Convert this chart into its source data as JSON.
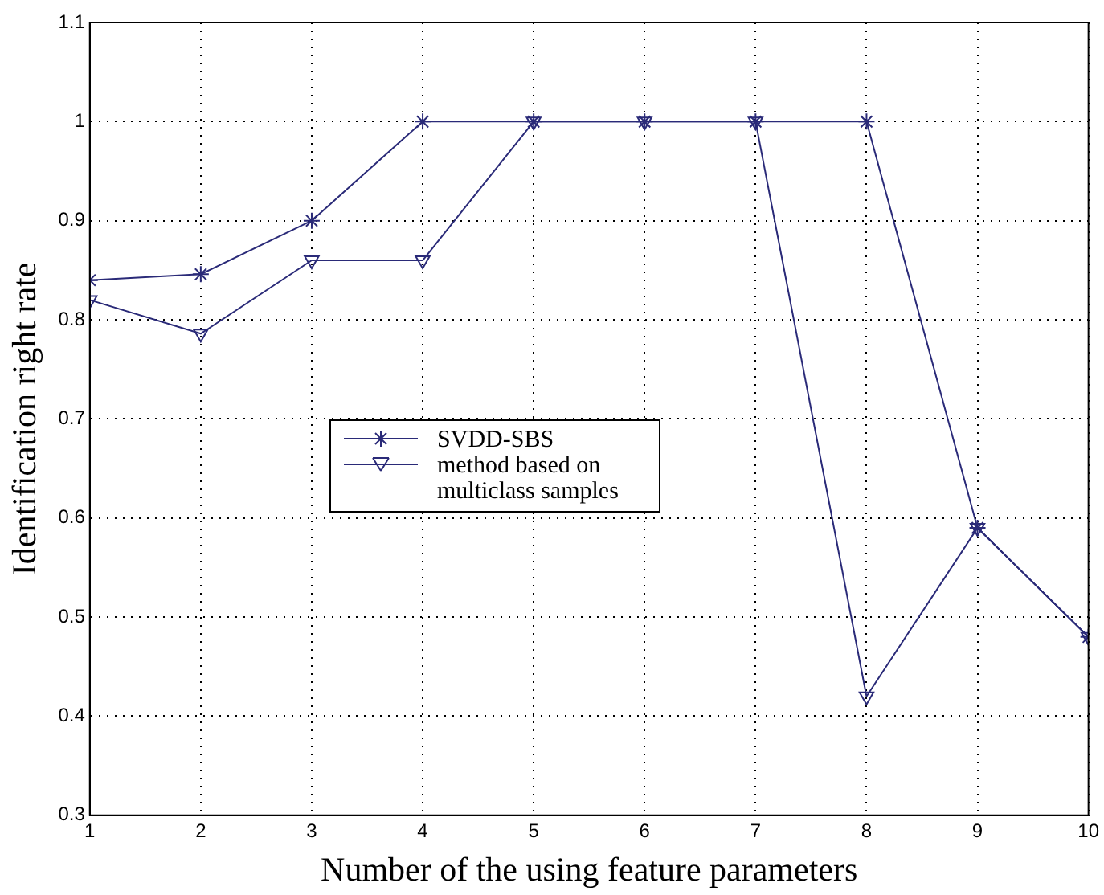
{
  "chart_data": {
    "type": "line",
    "xlabel": "Number of the using feature parameters",
    "ylabel": "Identification right rate",
    "x": [
      1,
      2,
      3,
      4,
      5,
      6,
      7,
      8,
      9,
      10
    ],
    "series": [
      {
        "name": "SVDD-SBS",
        "color": "#2a2a78",
        "marker": "cross",
        "values": [
          0.84,
          0.846,
          0.9,
          1,
          1,
          1,
          1,
          1,
          0.59,
          0.48
        ]
      },
      {
        "name": "method based on multiclass samples",
        "color": "#2a2a78",
        "marker": "triangle",
        "values": [
          0.82,
          0.786,
          0.86,
          0.86,
          1,
          1,
          1,
          0.42,
          0.59,
          0.48
        ]
      }
    ],
    "xlim": [
      1,
      10
    ],
    "xticks": [
      1,
      2,
      3,
      4,
      5,
      6,
      7,
      8,
      9,
      10
    ],
    "ylim": [
      0.3,
      1.1
    ],
    "yticks": [
      0.3,
      0.4,
      0.5,
      0.6,
      0.7,
      0.8,
      0.9,
      1,
      1.1
    ],
    "grid": true,
    "legend": "center left",
    "line_style": "solid"
  }
}
